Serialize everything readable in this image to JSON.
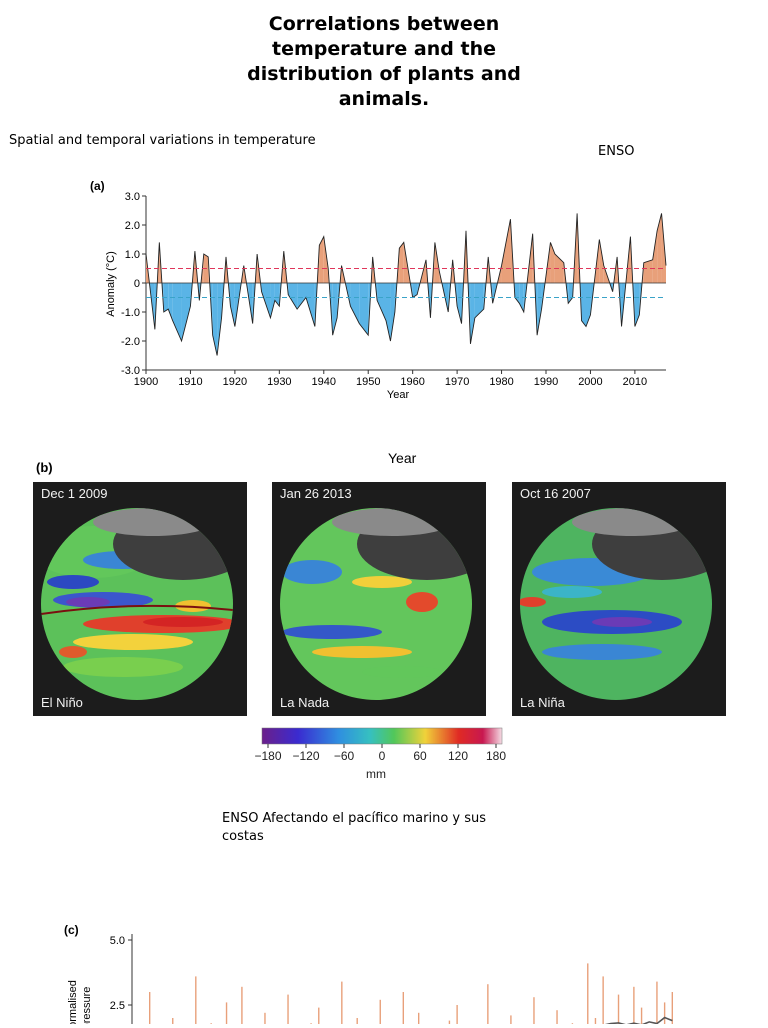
{
  "title": "Correlations between temperature and the distribution of plants and animals.",
  "caption_spatial": "Spatial and temporal variations in temperature",
  "caption_enso": "ENSO",
  "caption_pacific": "ENSO Afectando el pacífico marino y sus costas",
  "panel_a": {
    "label": "(a)",
    "ylabel": "Anomaly (°C)",
    "xlabel": "Year",
    "yticks": [
      "3.0",
      "2.0",
      "1.0",
      "0",
      "-1.0",
      "-2.0",
      "-3.0"
    ],
    "xticks": [
      "1900",
      "1910",
      "1920",
      "1930",
      "1940",
      "1950",
      "1960",
      "1970",
      "1980",
      "1990",
      "2000",
      "2010"
    ],
    "colors": {
      "positive": "#e8a07a",
      "negative": "#5ab4e6",
      "line": "#222222",
      "upper_ref": "#e0365a",
      "lower_ref": "#3aa3c8"
    }
  },
  "panel_b": {
    "label": "(b)",
    "header": "Year",
    "globes": [
      {
        "date": "Dec 1 2009",
        "state": "El Niño"
      },
      {
        "date": "Jan 26 2013",
        "state": "La Nada"
      },
      {
        "date": "Oct 16 2007",
        "state": "La Niña"
      }
    ],
    "colorbar": {
      "ticks": [
        "−180",
        "−120",
        "−60",
        "0",
        "60",
        "120",
        "180"
      ],
      "unit": "mm"
    }
  },
  "panel_c": {
    "label": "(c)",
    "ylabel_line1": "Normalised",
    "ylabel_line2": "pressure",
    "yticks": [
      "5.0",
      "2.5"
    ]
  },
  "chart_data": [
    {
      "type": "area",
      "title": "",
      "xlabel": "Year",
      "ylabel": "Anomaly (°C)",
      "xlim": [
        1900,
        2017
      ],
      "ylim": [
        -3.0,
        3.0
      ],
      "reference_lines": [
        0.5,
        -0.5
      ],
      "series": [
        {
          "x": [
            1900,
            1902,
            1903,
            1904,
            1905,
            1906,
            1908,
            1909,
            1910,
            1911,
            1912,
            1913,
            1914,
            1915,
            1916,
            1917,
            1918,
            1919,
            1920,
            1922,
            1923,
            1924,
            1925,
            1926,
            1928,
            1929,
            1930,
            1931,
            1932,
            1934,
            1936,
            1938,
            1939,
            1940,
            1941,
            1942,
            1943,
            1944,
            1946,
            1948,
            1950,
            1951,
            1952,
            1954,
            1955,
            1956,
            1957,
            1958,
            1960,
            1961,
            1963,
            1964,
            1965,
            1966,
            1968,
            1969,
            1970,
            1971,
            1972,
            1973,
            1974,
            1976,
            1977,
            1978,
            1980,
            1982,
            1983,
            1984,
            1985,
            1987,
            1988,
            1989,
            1991,
            1992,
            1994,
            1995,
            1996,
            1997,
            1998,
            1999,
            2000,
            2002,
            2003,
            2005,
            2006,
            2007,
            2009,
            2010,
            2011,
            2012,
            2014,
            2015,
            2016,
            2017
          ],
          "y": [
            1.0,
            -1.6,
            1.4,
            -1.0,
            -0.9,
            -1.3,
            -2.0,
            -1.4,
            -0.8,
            1.1,
            -0.6,
            1.0,
            0.9,
            -1.8,
            -2.5,
            -1.2,
            0.9,
            -0.8,
            -1.5,
            0.6,
            -0.4,
            -1.4,
            1.0,
            -0.3,
            -1.2,
            -0.6,
            -0.8,
            1.1,
            -0.4,
            -0.9,
            -0.5,
            -1.5,
            1.3,
            1.6,
            0.5,
            -1.8,
            -1.2,
            0.6,
            -0.8,
            -1.4,
            -1.8,
            0.9,
            -0.6,
            -1.3,
            -2.0,
            -1.0,
            1.2,
            1.4,
            -0.5,
            -0.4,
            0.8,
            -1.2,
            1.4,
            0.4,
            -1.0,
            0.8,
            -0.8,
            -1.4,
            1.8,
            -2.1,
            -1.2,
            -0.9,
            0.9,
            -0.7,
            0.6,
            2.2,
            -0.5,
            -0.7,
            -1.0,
            1.7,
            -1.8,
            -0.9,
            1.4,
            1.0,
            0.7,
            -0.7,
            -0.5,
            2.4,
            -1.3,
            -1.5,
            -1.1,
            1.5,
            0.6,
            -0.3,
            0.9,
            -1.5,
            1.6,
            -1.5,
            -1.1,
            0.7,
            0.8,
            1.8,
            2.4,
            0.6
          ]
        }
      ]
    },
    {
      "type": "bar",
      "title": "",
      "ylabel": "Normalised pressure",
      "ylim": [
        0,
        5.0
      ],
      "values": [
        1.2,
        3.0,
        0.8,
        1.6,
        2.0,
        0.5,
        1.4,
        3.6,
        1.0,
        1.8,
        0.6,
        2.6,
        1.2,
        3.2,
        0.9,
        1.4,
        2.2,
        0.7,
        1.6,
        2.9,
        1.1,
        0.5,
        1.8,
        2.4,
        0.9,
        1.3,
        3.4,
        1.0,
        2.0,
        0.6,
        1.5,
        2.7,
        1.2,
        0.8,
        3.0,
        1.6,
        2.2,
        0.9,
        1.4,
        0.7,
        1.9,
        2.5,
        1.1,
        0.6,
        1.7,
        3.3,
        1.0,
        1.5,
        2.1,
        0.8,
        1.3,
        2.8,
        1.6,
        0.7,
        2.3,
        1.2,
        1.8,
        0.9,
        4.1,
        2.0,
        3.6,
        1.4,
        2.9,
        1.0,
        3.2,
        2.4,
        1.1,
        3.4,
        2.6,
        3.0
      ]
    }
  ]
}
